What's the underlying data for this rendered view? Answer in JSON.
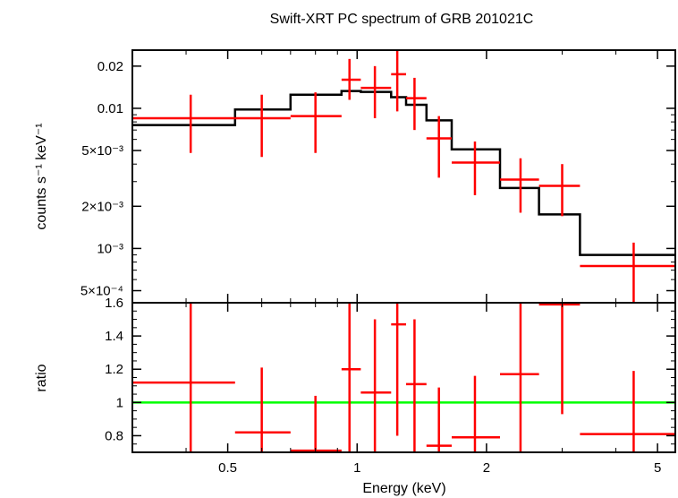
{
  "colors": {
    "data": "#ff0000",
    "model": "#000000",
    "unity": "#00ff00",
    "axes": "#000000"
  },
  "chart_data": {
    "title": "Swift-XRT PC spectrum of GRB 201021C",
    "x_axis": {
      "label": "Energy (keV)",
      "scale": "log",
      "range": [
        0.3,
        5.5
      ],
      "ticks": [
        {
          "value": 0.5,
          "label": "0.5"
        },
        {
          "value": 1,
          "label": "1"
        },
        {
          "value": 2,
          "label": "2"
        },
        {
          "value": 5,
          "label": "5"
        }
      ]
    },
    "panels": [
      {
        "type": "scatter",
        "name": "spectrum",
        "y_axis": {
          "label": "counts s⁻¹ keV⁻¹",
          "scale": "log",
          "range": [
            0.00041,
            0.026
          ],
          "ticks": [
            {
              "value": 0.02,
              "label": "0.02"
            },
            {
              "value": 0.01,
              "label": "0.01"
            },
            {
              "value": 0.005,
              "label": "5×10⁻³"
            },
            {
              "value": 0.002,
              "label": "2×10⁻³"
            },
            {
              "value": 0.001,
              "label": "10⁻³"
            },
            {
              "value": 0.0005,
              "label": "5×10⁻⁴"
            }
          ]
        },
        "data_points": [
          {
            "x": 0.41,
            "xlo": 0.3,
            "xhi": 0.52,
            "y": 0.0085,
            "ylo": 0.0048,
            "yhi": 0.0125
          },
          {
            "x": 0.6,
            "xlo": 0.52,
            "xhi": 0.7,
            "y": 0.0085,
            "ylo": 0.0045,
            "yhi": 0.0125
          },
          {
            "x": 0.8,
            "xlo": 0.7,
            "xhi": 0.92,
            "y": 0.0088,
            "ylo": 0.0048,
            "yhi": 0.013
          },
          {
            "x": 0.96,
            "xlo": 0.92,
            "xhi": 1.02,
            "y": 0.016,
            "ylo": 0.0115,
            "yhi": 0.0225
          },
          {
            "x": 1.1,
            "xlo": 1.02,
            "xhi": 1.2,
            "y": 0.014,
            "ylo": 0.0085,
            "yhi": 0.02
          },
          {
            "x": 1.24,
            "xlo": 1.2,
            "xhi": 1.3,
            "y": 0.0175,
            "ylo": 0.0095,
            "yhi": 0.027
          },
          {
            "x": 1.36,
            "xlo": 1.3,
            "xhi": 1.45,
            "y": 0.0118,
            "ylo": 0.007,
            "yhi": 0.0165
          },
          {
            "x": 1.55,
            "xlo": 1.45,
            "xhi": 1.66,
            "y": 0.0061,
            "ylo": 0.0032,
            "yhi": 0.0088
          },
          {
            "x": 1.88,
            "xlo": 1.66,
            "xhi": 2.15,
            "y": 0.0041,
            "ylo": 0.0024,
            "yhi": 0.0058
          },
          {
            "x": 2.4,
            "xlo": 2.15,
            "xhi": 2.65,
            "y": 0.0031,
            "ylo": 0.0018,
            "yhi": 0.0044
          },
          {
            "x": 3.0,
            "xlo": 2.65,
            "xhi": 3.3,
            "y": 0.0028,
            "ylo": 0.0017,
            "yhi": 0.004
          },
          {
            "x": 4.4,
            "xlo": 3.3,
            "xhi": 5.5,
            "y": 0.00075,
            "ylo": 0.00041,
            "yhi": 0.0011
          }
        ],
        "model_step": {
          "edges": [
            0.3,
            0.52,
            0.7,
            0.92,
            1.02,
            1.2,
            1.3,
            1.45,
            1.66,
            2.15,
            2.65,
            3.3,
            5.5
          ],
          "values": [
            0.0076,
            0.0098,
            0.0125,
            0.0133,
            0.0131,
            0.012,
            0.0106,
            0.0082,
            0.0051,
            0.0027,
            0.00175,
            0.0009
          ]
        }
      },
      {
        "type": "scatter",
        "name": "ratio",
        "y_axis": {
          "label": "ratio",
          "scale": "linear",
          "range": [
            0.7,
            1.6
          ],
          "ticks": [
            {
              "value": 0.8,
              "label": "0.8"
            },
            {
              "value": 1,
              "label": "1"
            },
            {
              "value": 1.2,
              "label": "1.2"
            },
            {
              "value": 1.4,
              "label": "1.4"
            },
            {
              "value": 1.6,
              "label": "1.6"
            }
          ]
        },
        "data_points": [
          {
            "x": 0.41,
            "xlo": 0.3,
            "xhi": 0.52,
            "y": 1.12,
            "ylo": 0.7,
            "yhi": 1.6
          },
          {
            "x": 0.6,
            "xlo": 0.52,
            "xhi": 0.7,
            "y": 0.82,
            "ylo": 0.7,
            "yhi": 1.21
          },
          {
            "x": 0.8,
            "xlo": 0.7,
            "xhi": 0.92,
            "y": 0.71,
            "ylo": 0.7,
            "yhi": 1.04
          },
          {
            "x": 0.96,
            "xlo": 0.92,
            "xhi": 1.02,
            "y": 1.2,
            "ylo": 0.7,
            "yhi": 1.6
          },
          {
            "x": 1.1,
            "xlo": 1.02,
            "xhi": 1.2,
            "y": 1.06,
            "ylo": 0.7,
            "yhi": 1.5
          },
          {
            "x": 1.24,
            "xlo": 1.2,
            "xhi": 1.3,
            "y": 1.47,
            "ylo": 0.8,
            "yhi": 1.6
          },
          {
            "x": 1.36,
            "xlo": 1.3,
            "xhi": 1.45,
            "y": 1.11,
            "ylo": 0.7,
            "yhi": 1.5
          },
          {
            "x": 1.55,
            "xlo": 1.45,
            "xhi": 1.66,
            "y": 0.74,
            "ylo": 0.7,
            "yhi": 1.09
          },
          {
            "x": 1.88,
            "xlo": 1.66,
            "xhi": 2.15,
            "y": 0.79,
            "ylo": 0.7,
            "yhi": 1.16
          },
          {
            "x": 2.4,
            "xlo": 2.15,
            "xhi": 2.65,
            "y": 1.17,
            "ylo": 0.7,
            "yhi": 1.6
          },
          {
            "x": 3.0,
            "xlo": 2.65,
            "xhi": 3.3,
            "y": 1.59,
            "ylo": 0.93,
            "yhi": 1.6
          },
          {
            "x": 4.4,
            "xlo": 3.3,
            "xhi": 5.5,
            "y": 0.81,
            "ylo": 0.7,
            "yhi": 1.19
          }
        ],
        "reference_line": 1
      }
    ]
  }
}
